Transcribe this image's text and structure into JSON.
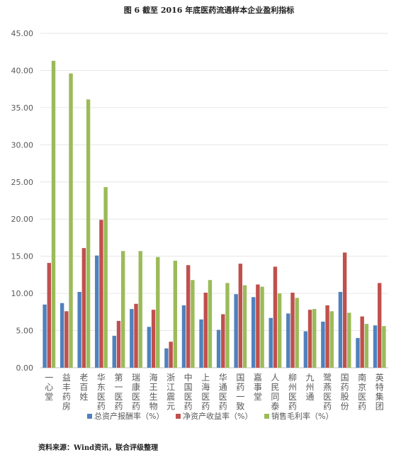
{
  "title": "图 6    截至 2016 年底医药流通样本企业盈利指标",
  "source": "资料来源：Wind资讯，联合评级整理",
  "chart_data": {
    "type": "bar",
    "title": "",
    "xlabel": "",
    "ylabel": "",
    "ylim": [
      0,
      45
    ],
    "yticks": [
      "0.00",
      "5.00",
      "10.00",
      "15.00",
      "20.00",
      "25.00",
      "30.00",
      "35.00",
      "40.00",
      "45.00"
    ],
    "grid": true,
    "legend_position": "bottom",
    "categories": [
      "一心堂",
      "益丰药房",
      "老百姓",
      "华东医药",
      "第一医药",
      "瑞康医药",
      "海王生物",
      "浙江震元",
      "中国医药",
      "上海医药",
      "华通医药",
      "国药一致",
      "嘉事堂",
      "人民同泰",
      "柳州医药",
      "九州通",
      "鹭燕医药",
      "国药股份",
      "南京医药",
      "英特集团"
    ],
    "series": [
      {
        "name": "总资产报酬率（%）",
        "color": "#4f81bd",
        "values": [
          8.5,
          8.7,
          10.2,
          15.1,
          4.3,
          7.9,
          5.5,
          2.6,
          8.4,
          6.5,
          5.1,
          9.9,
          9.5,
          6.7,
          7.3,
          4.9,
          6.2,
          10.2,
          4.0,
          5.7
        ]
      },
      {
        "name": "净资产收益率（%）",
        "color": "#c0504d",
        "values": [
          14.1,
          7.6,
          16.1,
          19.9,
          6.3,
          8.6,
          7.8,
          3.5,
          13.8,
          10.1,
          7.2,
          14.0,
          11.2,
          13.6,
          10.1,
          7.8,
          8.4,
          15.5,
          6.9,
          11.4
        ]
      },
      {
        "name": "销售毛利率（%）",
        "color": "#9bbb59",
        "values": [
          41.3,
          39.6,
          36.1,
          24.3,
          15.7,
          15.7,
          14.9,
          14.4,
          11.8,
          11.8,
          11.4,
          11.1,
          10.9,
          10.0,
          9.4,
          7.9,
          7.6,
          7.4,
          5.9,
          5.6
        ]
      }
    ]
  }
}
